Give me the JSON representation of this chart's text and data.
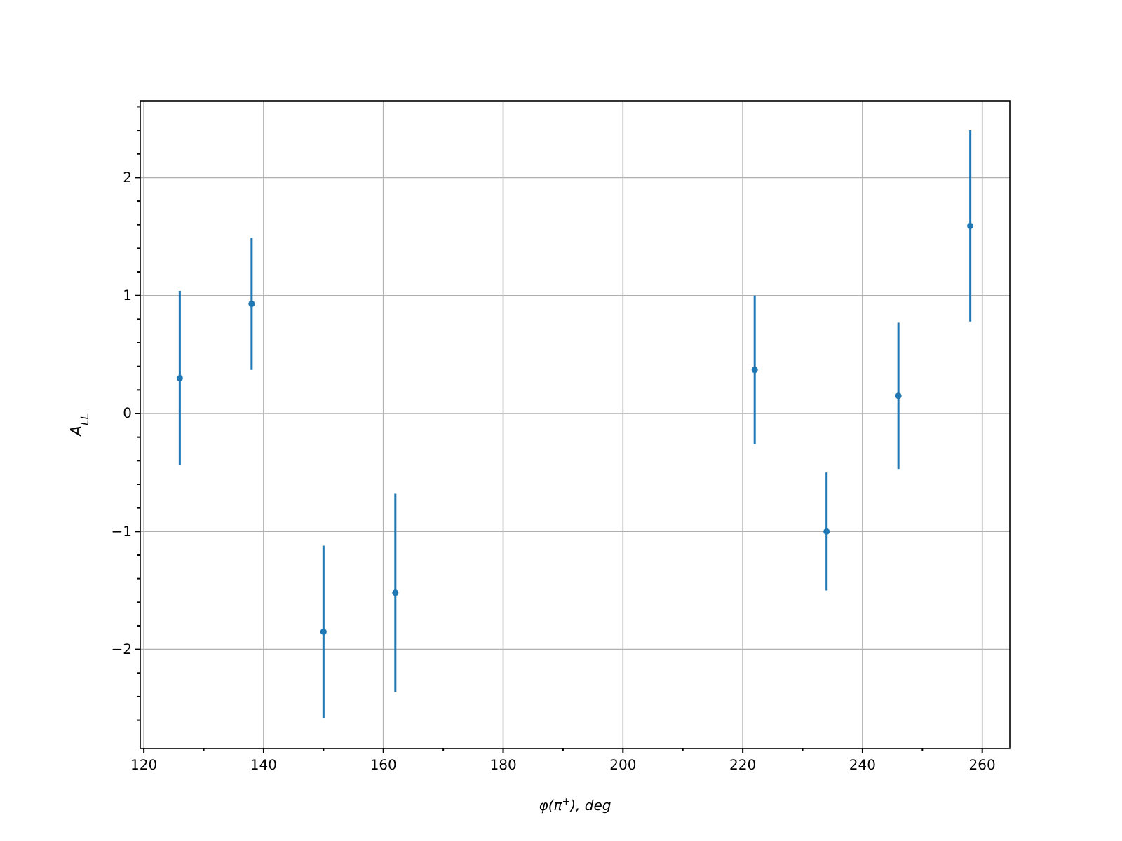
{
  "chart_data": {
    "type": "scatter",
    "xlabel": "φ(π$^{+}$), deg",
    "ylabel": "A$_{LL}$",
    "x": [
      126,
      138,
      150,
      162,
      222,
      234,
      246,
      258
    ],
    "values": [
      0.3,
      0.93,
      -1.85,
      -1.52,
      0.37,
      -1.0,
      0.15,
      1.59
    ],
    "errors": [
      0.74,
      0.56,
      0.73,
      0.84,
      0.63,
      0.5,
      0.62,
      0.81
    ],
    "color": "#1f77b4",
    "marker": "circle",
    "grid": true,
    "xlim": [
      119.4,
      264.6
    ],
    "ylim": [
      -2.84,
      2.65
    ],
    "xticks": [
      120,
      {
        "value": 130,
        "label": null
      },
      140,
      {
        "value": 150,
        "label": null
      },
      160,
      {
        "value": 170,
        "label": null
      },
      180,
      {
        "value": 190,
        "label": null
      },
      200,
      {
        "value": 210,
        "label": null
      },
      220,
      {
        "value": 230,
        "label": null
      },
      240,
      {
        "value": 250,
        "label": null
      },
      260
    ],
    "yticks": [
      {
        "value": -2.6,
        "label": null
      },
      {
        "value": -2.4,
        "label": null
      },
      {
        "value": -2.2,
        "label": null
      },
      -2,
      {
        "value": -1.8,
        "label": null
      },
      {
        "value": -1.6,
        "label": null
      },
      {
        "value": -1.4,
        "label": null
      },
      {
        "value": -1.2,
        "label": null
      },
      -1,
      {
        "value": -0.8,
        "label": null
      },
      {
        "value": -0.6,
        "label": null
      },
      {
        "value": -0.4,
        "label": null
      },
      {
        "value": -0.2,
        "label": null
      },
      0,
      {
        "value": 0.2,
        "label": null
      },
      {
        "value": 0.4,
        "label": null
      },
      {
        "value": 0.6,
        "label": null
      },
      {
        "value": 0.8,
        "label": null
      },
      1,
      {
        "value": 1.2,
        "label": null
      },
      {
        "value": 1.4,
        "label": null
      },
      {
        "value": 1.6,
        "label": null
      },
      {
        "value": 1.8,
        "label": null
      },
      2,
      {
        "value": 2.2,
        "label": null
      },
      {
        "value": 2.4,
        "label": null
      },
      {
        "value": 2.6,
        "label": null
      }
    ]
  }
}
